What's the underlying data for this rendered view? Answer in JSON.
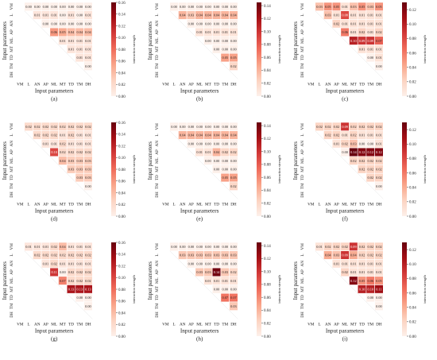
{
  "figure": {
    "color_scale": [
      "#fdf0ea",
      "#fcd3c1",
      "#f9a58a",
      "#f06c5b",
      "#d33a39",
      "#a50f15",
      "#67000d"
    ],
    "cell_border": "#ffffff",
    "empty_cell_color": "#ffffff"
  },
  "chart_data": [
    {
      "type": "heatmap",
      "panel_label": "(a)",
      "xlabel": "Input parameters",
      "ylabel": "Input parameters",
      "colorbar_label": "interaction strength",
      "categories": [
        "VM",
        "L",
        "AN",
        "AP",
        "ML",
        "MT",
        "TD",
        "TM",
        "DH"
      ],
      "vlim": [
        0,
        0.16
      ],
      "colorbar_ticks": [
        0.0,
        0.02,
        0.04,
        0.06,
        0.08,
        0.1,
        0.12,
        0.14,
        0.16
      ],
      "colorbar_tick_labels": [
        "0.00",
        "0.02",
        "0.04",
        "0.06",
        "0.08",
        "0.10",
        "0.12",
        "0.14",
        "0.16"
      ],
      "matrix": [
        [
          null,
          0.0,
          0.0,
          0.0,
          0.0,
          0.0,
          0.0,
          0.0,
          0.0
        ],
        [
          null,
          null,
          0.01,
          0.01,
          0.01,
          0.0,
          0.01,
          0.0,
          0.01
        ],
        [
          null,
          null,
          null,
          0.0,
          0.0,
          0.0,
          0.0,
          0.0,
          0.0
        ],
        [
          null,
          null,
          null,
          null,
          0.06,
          0.05,
          0.04,
          0.04,
          0.04
        ],
        [
          null,
          null,
          null,
          null,
          null,
          0.01,
          0.01,
          0.01,
          0.01
        ],
        [
          null,
          null,
          null,
          null,
          null,
          null,
          0.01,
          0.01,
          0.01
        ],
        [
          null,
          null,
          null,
          null,
          null,
          null,
          null,
          0.01,
          0.01
        ],
        [
          null,
          null,
          null,
          null,
          null,
          null,
          null,
          null,
          0.0
        ],
        [
          null,
          null,
          null,
          null,
          null,
          null,
          null,
          null,
          null
        ]
      ]
    },
    {
      "type": "heatmap",
      "panel_label": "(b)",
      "xlabel": "Input parameters",
      "ylabel": "Input parameters",
      "colorbar_label": "interaction strength",
      "categories": [
        "VM",
        "L",
        "AN",
        "AP",
        "ML",
        "MT",
        "TD",
        "TM",
        "DH"
      ],
      "vlim": [
        0,
        0.145
      ],
      "colorbar_ticks": [
        0.0,
        0.02,
        0.04,
        0.06,
        0.08,
        0.1,
        0.12,
        0.14
      ],
      "colorbar_tick_labels": [
        "0.00",
        "0.02",
        "0.04",
        "0.06",
        "0.08",
        "0.10",
        "0.12",
        "0.14"
      ],
      "matrix": [
        [
          null,
          0.0,
          0.0,
          0.0,
          0.0,
          0.0,
          0.0,
          0.0,
          0.0
        ],
        [
          null,
          null,
          0.04,
          0.03,
          0.04,
          0.04,
          0.04,
          0.04,
          0.04
        ],
        [
          null,
          null,
          null,
          0.0,
          0.0,
          0.0,
          0.0,
          0.0,
          0.0
        ],
        [
          null,
          null,
          null,
          null,
          0.01,
          0.01,
          0.01,
          0.01,
          0.01
        ],
        [
          null,
          null,
          null,
          null,
          null,
          0.0,
          0.0,
          0.0,
          0.0
        ],
        [
          null,
          null,
          null,
          null,
          null,
          null,
          0.0,
          0.0,
          0.0
        ],
        [
          null,
          null,
          null,
          null,
          null,
          null,
          null,
          0.05,
          0.05
        ],
        [
          null,
          null,
          null,
          null,
          null,
          null,
          null,
          null,
          0.02
        ],
        [
          null,
          null,
          null,
          null,
          null,
          null,
          null,
          null,
          null
        ]
      ]
    },
    {
      "type": "heatmap",
      "panel_label": "(c)",
      "xlabel": "Input parameters",
      "ylabel": "Input parameters",
      "colorbar_label": "interaction strength",
      "categories": [
        "VM",
        "L",
        "AN",
        "AP",
        "ML",
        "MT",
        "TD",
        "TM",
        "DH"
      ],
      "vlim": [
        0,
        0.13
      ],
      "colorbar_ticks": [
        0.0,
        0.02,
        0.04,
        0.06,
        0.08,
        0.1,
        0.12
      ],
      "colorbar_tick_labels": [
        "0.00",
        "0.02",
        "0.04",
        "0.06",
        "0.08",
        "0.10",
        "0.12"
      ],
      "matrix": [
        [
          null,
          0.03,
          0.05,
          0.05,
          0.01,
          0.03,
          0.05,
          0.03,
          0.05
        ],
        [
          null,
          null,
          0.03,
          0.01,
          0.08,
          0.01,
          0.01,
          0.01,
          0.01
        ],
        [
          null,
          null,
          null,
          0.02,
          0.01,
          0.01,
          0.01,
          0.01,
          0.01
        ],
        [
          null,
          null,
          null,
          null,
          0.06,
          0.01,
          0.02,
          0.01,
          0.02
        ],
        [
          null,
          null,
          null,
          null,
          null,
          0.1,
          0.09,
          0.09,
          0.07
        ],
        [
          null,
          null,
          null,
          null,
          null,
          null,
          0.01,
          0.01,
          0.01
        ],
        [
          null,
          null,
          null,
          null,
          null,
          null,
          null,
          0.0,
          0.01
        ],
        [
          null,
          null,
          null,
          null,
          null,
          null,
          null,
          null,
          0.0
        ],
        [
          null,
          null,
          null,
          null,
          null,
          null,
          null,
          null,
          null
        ]
      ]
    },
    {
      "type": "heatmap",
      "panel_label": "(d)",
      "xlabel": "Input parameters",
      "ylabel": "Input parameters",
      "colorbar_label": "interaction strength",
      "categories": [
        "VM",
        "L",
        "AN",
        "AP",
        "ML",
        "MT",
        "TD",
        "TM",
        "DH"
      ],
      "vlim": [
        0,
        0.16
      ],
      "colorbar_ticks": [
        0.0,
        0.02,
        0.04,
        0.06,
        0.08,
        0.1,
        0.12,
        0.14,
        0.16
      ],
      "colorbar_tick_labels": [
        "0.00",
        "0.02",
        "0.04",
        "0.06",
        "0.08",
        "0.10",
        "0.12",
        "0.14",
        "0.16"
      ],
      "matrix": [
        [
          null,
          0.02,
          0.02,
          0.02,
          0.02,
          0.02,
          0.02,
          0.02,
          0.02
        ],
        [
          null,
          null,
          0.02,
          0.02,
          0.02,
          0.01,
          0.02,
          0.01,
          0.01
        ],
        [
          null,
          null,
          null,
          0.01,
          0.01,
          0.02,
          0.01,
          0.01,
          0.01
        ],
        [
          null,
          null,
          null,
          null,
          0.1,
          0.02,
          0.02,
          0.02,
          0.02
        ],
        [
          null,
          null,
          null,
          null,
          null,
          0.04,
          0.03,
          0.03,
          0.03
        ],
        [
          null,
          null,
          null,
          null,
          null,
          null,
          0.03,
          0.03,
          0.03
        ],
        [
          null,
          null,
          null,
          null,
          null,
          null,
          null,
          0.03,
          0.03
        ],
        [
          null,
          null,
          null,
          null,
          null,
          null,
          null,
          null,
          0.0
        ],
        [
          null,
          null,
          null,
          null,
          null,
          null,
          null,
          null,
          null
        ]
      ]
    },
    {
      "type": "heatmap",
      "panel_label": "(e)",
      "xlabel": "Input parameters",
      "ylabel": "Input parameters",
      "colorbar_label": "interaction strength",
      "categories": [
        "VM",
        "L",
        "AN",
        "AP",
        "ML",
        "MT",
        "TD",
        "TM",
        "DH"
      ],
      "vlim": [
        0,
        0.145
      ],
      "colorbar_ticks": [
        0.0,
        0.02,
        0.04,
        0.06,
        0.08,
        0.1,
        0.12,
        0.14
      ],
      "colorbar_tick_labels": [
        "0.00",
        "0.02",
        "0.04",
        "0.06",
        "0.08",
        "0.10",
        "0.12",
        "0.14"
      ],
      "matrix": [
        [
          null,
          0.0,
          0.0,
          0.0,
          0.0,
          0.0,
          0.0,
          0.0,
          0.0
        ],
        [
          null,
          null,
          0.04,
          0.04,
          0.04,
          0.04,
          0.04,
          0.04,
          0.04
        ],
        [
          null,
          null,
          null,
          0.0,
          0.0,
          0.0,
          0.0,
          0.0,
          0.0
        ],
        [
          null,
          null,
          null,
          null,
          0.01,
          0.01,
          0.04,
          0.02,
          0.02
        ],
        [
          null,
          null,
          null,
          null,
          null,
          0.0,
          0.0,
          0.0,
          0.0
        ],
        [
          null,
          null,
          null,
          null,
          null,
          null,
          0.0,
          0.0,
          0.0
        ],
        [
          null,
          null,
          null,
          null,
          null,
          null,
          null,
          0.05,
          0.05
        ],
        [
          null,
          null,
          null,
          null,
          null,
          null,
          null,
          null,
          0.02
        ],
        [
          null,
          null,
          null,
          null,
          null,
          null,
          null,
          null,
          null
        ]
      ]
    },
    {
      "type": "heatmap",
      "panel_label": "(f)",
      "xlabel": "Input parameters",
      "ylabel": "Input parameters",
      "colorbar_label": "interaction strength",
      "categories": [
        "VM",
        "L",
        "AN",
        "AP",
        "ML",
        "MT",
        "TD",
        "TM",
        "DH"
      ],
      "vlim": [
        0,
        0.13
      ],
      "colorbar_ticks": [
        0.0,
        0.02,
        0.04,
        0.06,
        0.08,
        0.1,
        0.12
      ],
      "colorbar_tick_labels": [
        "0.00",
        "0.02",
        "0.04",
        "0.06",
        "0.08",
        "0.10",
        "0.12"
      ],
      "matrix": [
        [
          null,
          0.02,
          0.02,
          0.02,
          0.09,
          0.02,
          0.02,
          0.02,
          0.02
        ],
        [
          null,
          null,
          0.02,
          0.02,
          0.01,
          0.02,
          0.01,
          0.01,
          0.01
        ],
        [
          null,
          null,
          null,
          0.01,
          0.02,
          0.03,
          0.0,
          0.0,
          0.01
        ],
        [
          null,
          null,
          null,
          null,
          0.0,
          0.14,
          0.12,
          0.12,
          0.12
        ],
        [
          null,
          null,
          null,
          null,
          null,
          0.02,
          0.02,
          0.02,
          0.02
        ],
        [
          null,
          null,
          null,
          null,
          null,
          null,
          0.02,
          0.02,
          0.02
        ],
        [
          null,
          null,
          null,
          null,
          null,
          null,
          null,
          0.02,
          0.02
        ],
        [
          null,
          null,
          null,
          null,
          null,
          null,
          null,
          null,
          0.0
        ],
        [
          null,
          null,
          null,
          null,
          null,
          null,
          null,
          null,
          null
        ]
      ]
    },
    {
      "type": "heatmap",
      "panel_label": "(g)",
      "xlabel": "Input parameters",
      "ylabel": "Input parameters",
      "colorbar_label": "interaction strength",
      "categories": [
        "VM",
        "L",
        "AN",
        "AP",
        "ML",
        "MT",
        "TD",
        "TM",
        "DH"
      ],
      "vlim": [
        0,
        0.16
      ],
      "colorbar_ticks": [
        0.0,
        0.02,
        0.04,
        0.06,
        0.08,
        0.1,
        0.12,
        0.14,
        0.16
      ],
      "colorbar_tick_labels": [
        "0.00",
        "0.02",
        "0.04",
        "0.06",
        "0.08",
        "0.10",
        "0.12",
        "0.14",
        "0.16"
      ],
      "matrix": [
        [
          null,
          0.01,
          0.01,
          0.01,
          0.02,
          0.04,
          0.01,
          0.01,
          0.01
        ],
        [
          null,
          null,
          0.02,
          0.02,
          0.02,
          0.02,
          0.02,
          0.02,
          0.02
        ],
        [
          null,
          null,
          null,
          0.01,
          0.02,
          0.01,
          0.01,
          0.01,
          0.01
        ],
        [
          null,
          null,
          null,
          null,
          0.11,
          0.0,
          0.02,
          0.02,
          0.02
        ],
        [
          null,
          null,
          null,
          null,
          null,
          0.07,
          0.02,
          0.02,
          0.02
        ],
        [
          null,
          null,
          null,
          null,
          null,
          null,
          0.13,
          0.13,
          0.13
        ],
        [
          null,
          null,
          null,
          null,
          null,
          null,
          null,
          0.0,
          0.0
        ],
        [
          null,
          null,
          null,
          null,
          null,
          null,
          null,
          null,
          0.0
        ],
        [
          null,
          null,
          null,
          null,
          null,
          null,
          null,
          null,
          null
        ]
      ]
    },
    {
      "type": "heatmap",
      "panel_label": "(h)",
      "xlabel": "Input parameters",
      "ylabel": "Input parameters",
      "colorbar_label": "interaction strength",
      "categories": [
        "VM",
        "L",
        "AN",
        "AP",
        "ML",
        "MT",
        "TD",
        "TM",
        "DH"
      ],
      "vlim": [
        0,
        0.145
      ],
      "colorbar_ticks": [
        0.0,
        0.02,
        0.04,
        0.06,
        0.08,
        0.1,
        0.12,
        0.14
      ],
      "colorbar_tick_labels": [
        "0.00",
        "0.02",
        "0.04",
        "0.06",
        "0.08",
        "0.10",
        "0.12",
        "0.14"
      ],
      "matrix": [
        [
          null,
          0.0,
          0.0,
          0.0,
          0.0,
          0.0,
          0.0,
          0.0,
          0.0
        ],
        [
          null,
          null,
          0.03,
          0.03,
          0.03,
          0.03,
          0.03,
          0.03,
          0.03
        ],
        [
          null,
          null,
          null,
          0.0,
          0.0,
          0.0,
          0.0,
          0.0,
          0.0
        ],
        [
          null,
          null,
          null,
          null,
          0.03,
          0.03,
          0.14,
          0.03,
          0.02
        ],
        [
          null,
          null,
          null,
          null,
          null,
          0.01,
          0.01,
          0.01,
          0.01
        ],
        [
          null,
          null,
          null,
          null,
          null,
          null,
          0.0,
          0.0,
          0.0
        ],
        [
          null,
          null,
          null,
          null,
          null,
          null,
          null,
          0.07,
          0.07
        ],
        [
          null,
          null,
          null,
          null,
          null,
          null,
          null,
          null,
          0.03
        ],
        [
          null,
          null,
          null,
          null,
          null,
          null,
          null,
          null,
          null
        ]
      ]
    },
    {
      "type": "heatmap",
      "panel_label": "(i)",
      "xlabel": "Input parameters",
      "ylabel": "Input parameters",
      "colorbar_label": "interaction strength",
      "categories": [
        "VM",
        "L",
        "AN",
        "AP",
        "ML",
        "MT",
        "TD",
        "TM",
        "DH"
      ],
      "vlim": [
        0,
        0.13
      ],
      "colorbar_ticks": [
        0.0,
        0.02,
        0.04,
        0.06,
        0.08,
        0.1,
        0.12
      ],
      "colorbar_tick_labels": [
        "0.00",
        "0.02",
        "0.04",
        "0.06",
        "0.08",
        "0.10",
        "0.12"
      ],
      "matrix": [
        [
          null,
          0.01,
          0.02,
          0.02,
          0.02,
          0.09,
          0.02,
          0.02,
          0.02
        ],
        [
          null,
          null,
          0.04,
          0.03,
          0.09,
          0.04,
          0.02,
          0.02,
          0.02
        ],
        [
          null,
          null,
          null,
          0.01,
          0.01,
          0.01,
          0.01,
          0.01,
          0.01
        ],
        [
          null,
          null,
          null,
          null,
          0.02,
          0.01,
          0.01,
          0.01,
          0.01
        ],
        [
          null,
          null,
          null,
          null,
          null,
          0.12,
          0.05,
          0.06,
          0.05
        ],
        [
          null,
          null,
          null,
          null,
          null,
          null,
          0.1,
          0.1,
          0.11
        ],
        [
          null,
          null,
          null,
          null,
          null,
          null,
          null,
          0.0,
          0.0
        ],
        [
          null,
          null,
          null,
          null,
          null,
          null,
          null,
          null,
          0.0
        ],
        [
          null,
          null,
          null,
          null,
          null,
          null,
          null,
          null,
          null
        ]
      ]
    }
  ]
}
